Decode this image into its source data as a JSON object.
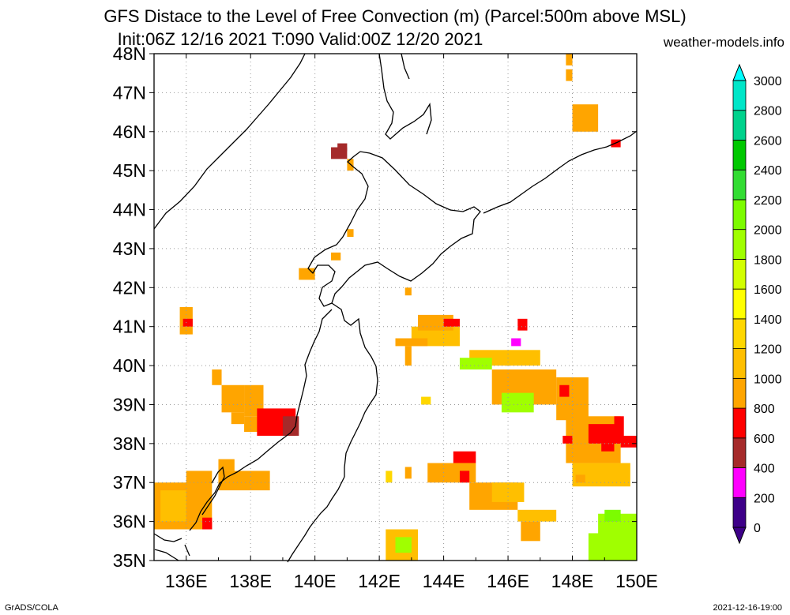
{
  "title_line1": "GFS Distace to the Level of Free Convection (m) (Parcel:500m above MSL)",
  "title_line2": "Init:06Z 12/16 2021 T:090 Valid:00Z 12/20 2021",
  "site": "weather-models.info",
  "footer_left": "GrADS/COLA",
  "footer_right": "2021-12-16-19:00",
  "lat_labels": [
    "35N",
    "36N",
    "37N",
    "38N",
    "39N",
    "40N",
    "41N",
    "42N",
    "43N",
    "44N",
    "45N",
    "46N",
    "47N",
    "48N"
  ],
  "lon_labels": [
    "136E",
    "138E",
    "140E",
    "142E",
    "144E",
    "146E",
    "148E",
    "150E"
  ],
  "colorbar": {
    "levels": [
      "0",
      "200",
      "400",
      "600",
      "800",
      "1000",
      "1200",
      "1400",
      "1600",
      "1800",
      "2000",
      "2200",
      "2400",
      "2600",
      "2800",
      "3000"
    ],
    "colors": [
      "#3d0088",
      "#ff00ff",
      "#a52a2a",
      "#ff0000",
      "#ffa500",
      "#ffbf00",
      "#ffd700",
      "#ffff00",
      "#d2ff00",
      "#a0ff00",
      "#7cfc00",
      "#32dc32",
      "#00c800",
      "#00d28c",
      "#00e6c8",
      "#00ffff"
    ]
  },
  "colors": {
    "orange": "#ffa500",
    "gold": "#ffbf00",
    "yellow": "#ffd700",
    "red": "#ff0000",
    "brown": "#a52a2a",
    "magenta": "#ff00ff",
    "lime": "#a0ff00",
    "green": "#7cfc00"
  }
}
